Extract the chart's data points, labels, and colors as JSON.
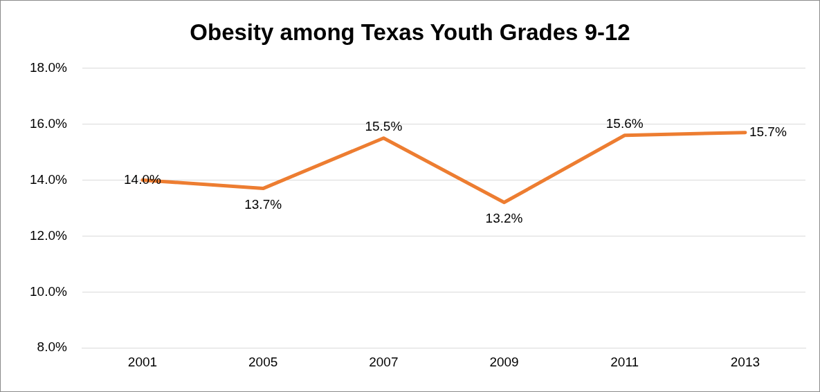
{
  "chart_data": {
    "type": "line",
    "title": "Obesity among Texas Youth Grades 9-12",
    "categories": [
      "2001",
      "2005",
      "2007",
      "2009",
      "2011",
      "2013"
    ],
    "series": [
      {
        "color": "#ed7d31",
        "values": [
          14.0,
          13.7,
          15.5,
          13.2,
          15.6,
          15.7
        ],
        "value_labels": [
          "14.0%",
          "13.7%",
          "15.5%",
          "13.2%",
          "15.6%",
          "15.7%"
        ]
      }
    ],
    "ylim": [
      8,
      18
    ],
    "yticks": [
      {
        "value": 8,
        "label": "8.0%"
      },
      {
        "value": 10,
        "label": "10.0%"
      },
      {
        "value": 12,
        "label": "12.0%"
      },
      {
        "value": 14,
        "label": "14.0%"
      },
      {
        "value": 16,
        "label": "16.0%"
      },
      {
        "value": 18,
        "label": "18.0%"
      }
    ],
    "grid": "y",
    "legend": false,
    "marker": "none",
    "line_style": "solid"
  }
}
